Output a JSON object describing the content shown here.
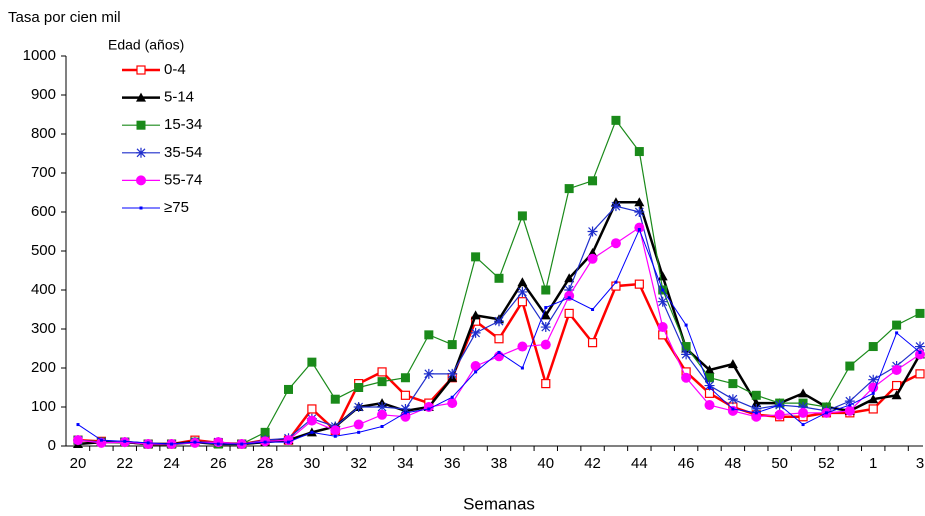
{
  "chart_data": {
    "type": "line",
    "y_label": "Tasa por cien mil",
    "x_label": "Semanas",
    "legend_title": "Edad (años)",
    "legend": "top-left",
    "categories": [
      20,
      null,
      22,
      null,
      24,
      null,
      26,
      null,
      28,
      null,
      30,
      null,
      32,
      null,
      34,
      null,
      36,
      null,
      38,
      null,
      40,
      null,
      42,
      null,
      44,
      null,
      46,
      null,
      48,
      null,
      50,
      null,
      52,
      null,
      1,
      null,
      3
    ],
    "ylim": [
      0,
      1000
    ],
    "yticks": [
      0,
      100,
      200,
      300,
      400,
      500,
      600,
      700,
      800,
      900,
      1000
    ],
    "series": [
      {
        "name": "0-4",
        "color": "#ff0000",
        "marker": "square-open",
        "width": 2.5,
        "values": [
          15,
          12,
          10,
          5,
          5,
          15,
          8,
          5,
          15,
          15,
          95,
          40,
          160,
          190,
          130,
          110,
          175,
          320,
          275,
          370,
          160,
          340,
          265,
          410,
          415,
          285,
          190,
          135,
          100,
          80,
          75,
          75,
          85,
          85,
          95,
          155,
          185
        ]
      },
      {
        "name": "5-14",
        "color": "#000000",
        "marker": "triangle",
        "width": 2.5,
        "values": [
          5,
          10,
          10,
          5,
          5,
          10,
          5,
          5,
          10,
          15,
          35,
          50,
          100,
          110,
          90,
          100,
          175,
          335,
          325,
          420,
          335,
          430,
          495,
          625,
          625,
          435,
          250,
          195,
          210,
          110,
          110,
          135,
          100,
          90,
          120,
          130,
          235
        ]
      },
      {
        "name": "15-34",
        "color": "#1a8a1a",
        "marker": "square",
        "width": 1.2,
        "values": [
          15,
          10,
          10,
          5,
          5,
          10,
          5,
          5,
          35,
          145,
          215,
          120,
          150,
          165,
          175,
          285,
          260,
          485,
          430,
          590,
          400,
          660,
          680,
          835,
          755,
          400,
          255,
          175,
          160,
          130,
          110,
          110,
          100,
          205,
          255,
          310,
          340
        ]
      },
      {
        "name": "35-54",
        "color": "#1f2ecc",
        "marker": "star",
        "width": 1.2,
        "values": [
          15,
          10,
          10,
          5,
          5,
          10,
          10,
          5,
          15,
          20,
          70,
          50,
          100,
          100,
          95,
          185,
          185,
          290,
          320,
          395,
          305,
          400,
          550,
          615,
          600,
          370,
          235,
          155,
          120,
          95,
          105,
          100,
          90,
          115,
          170,
          205,
          255
        ]
      },
      {
        "name": "55-74",
        "color": "#ff00ff",
        "marker": "circle",
        "width": 1.2,
        "values": [
          15,
          8,
          10,
          5,
          5,
          8,
          10,
          5,
          12,
          15,
          65,
          40,
          55,
          80,
          75,
          100,
          110,
          205,
          230,
          255,
          260,
          385,
          480,
          520,
          560,
          305,
          175,
          105,
          90,
          75,
          80,
          85,
          85,
          90,
          150,
          195,
          235
        ]
      },
      {
        "name": "≥75",
        "color": "#0000ff",
        "marker": "dot",
        "width": 1,
        "values": [
          55,
          15,
          12,
          8,
          5,
          10,
          5,
          5,
          10,
          10,
          35,
          25,
          35,
          50,
          85,
          95,
          125,
          190,
          240,
          200,
          355,
          380,
          350,
          420,
          555,
          400,
          310,
          150,
          95,
          85,
          105,
          55,
          85,
          105,
          135,
          290,
          240
        ]
      }
    ]
  }
}
